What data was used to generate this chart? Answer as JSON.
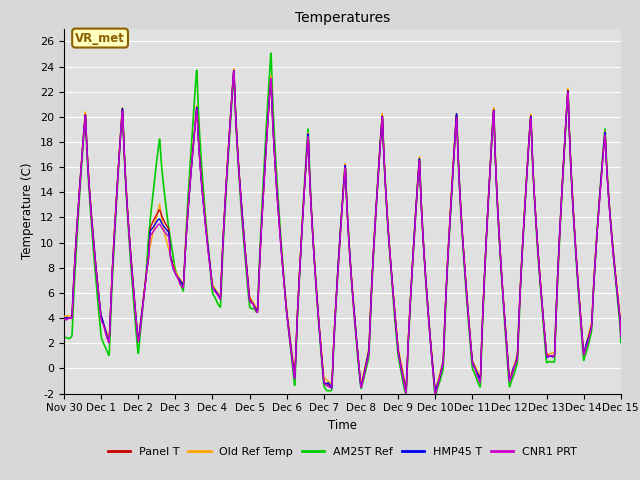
{
  "title": "Temperatures",
  "xlabel": "Time",
  "ylabel": "Temperature (C)",
  "ylim": [
    -2,
    27
  ],
  "yticks": [
    -2,
    0,
    2,
    4,
    6,
    8,
    10,
    12,
    14,
    16,
    18,
    20,
    22,
    24,
    26
  ],
  "fig_bg_color": "#d8d8d8",
  "plot_bg_color": "#e0e0e0",
  "grid_color": "#ffffff",
  "annotation_text": "VR_met",
  "annotation_bg": "#ffffc0",
  "annotation_edge": "#8B6000",
  "series": {
    "panel_t": {
      "color": "#cc0000",
      "label": "Panel T",
      "lw": 1.0,
      "zorder": 4
    },
    "old_ref": {
      "color": "#ffa500",
      "label": "Old Ref Temp",
      "lw": 1.0,
      "zorder": 3
    },
    "am25t": {
      "color": "#00cc00",
      "label": "AM25T Ref",
      "lw": 1.2,
      "zorder": 2
    },
    "hmp45": {
      "color": "#0000ee",
      "label": "HMP45 T",
      "lw": 1.0,
      "zorder": 5
    },
    "cnr1": {
      "color": "#cc00cc",
      "label": "CNR1 PRT",
      "lw": 1.0,
      "zorder": 6
    }
  },
  "xtick_labels": [
    "Nov 30",
    "Dec 1",
    "Dec 2",
    "Dec 3",
    "Dec 4",
    "Dec 5",
    "Dec 6",
    "Dec 7",
    "Dec 8",
    "Dec 9",
    "Dec 10",
    "Dec 11",
    "Dec 12",
    "Dec 13",
    "Dec 14",
    "Dec 15"
  ],
  "num_days": 15,
  "pts_per_day": 288,
  "day_maxes_base": [
    20.5,
    21.0,
    13.0,
    21.0,
    24.0,
    23.5,
    19.0,
    16.5,
    20.5,
    17.0,
    20.5,
    21.0,
    20.5,
    22.5,
    19.0
  ],
  "day_mins_base": [
    4.0,
    2.0,
    7.5,
    6.5,
    5.5,
    4.5,
    -1.0,
    -1.5,
    1.5,
    -2.0,
    0.5,
    -1.0,
    1.0,
    1.0,
    3.5
  ],
  "am25t_day_maxes": [
    20.5,
    21.0,
    18.5,
    24.0,
    23.8,
    25.5,
    19.5,
    16.5,
    20.5,
    17.0,
    20.5,
    21.0,
    20.5,
    22.5,
    19.5
  ],
  "am25t_day_mins": [
    2.5,
    1.0,
    7.8,
    6.0,
    4.8,
    4.5,
    -1.5,
    -1.8,
    1.0,
    -2.3,
    0.0,
    -1.5,
    0.5,
    0.5,
    3.0
  ]
}
